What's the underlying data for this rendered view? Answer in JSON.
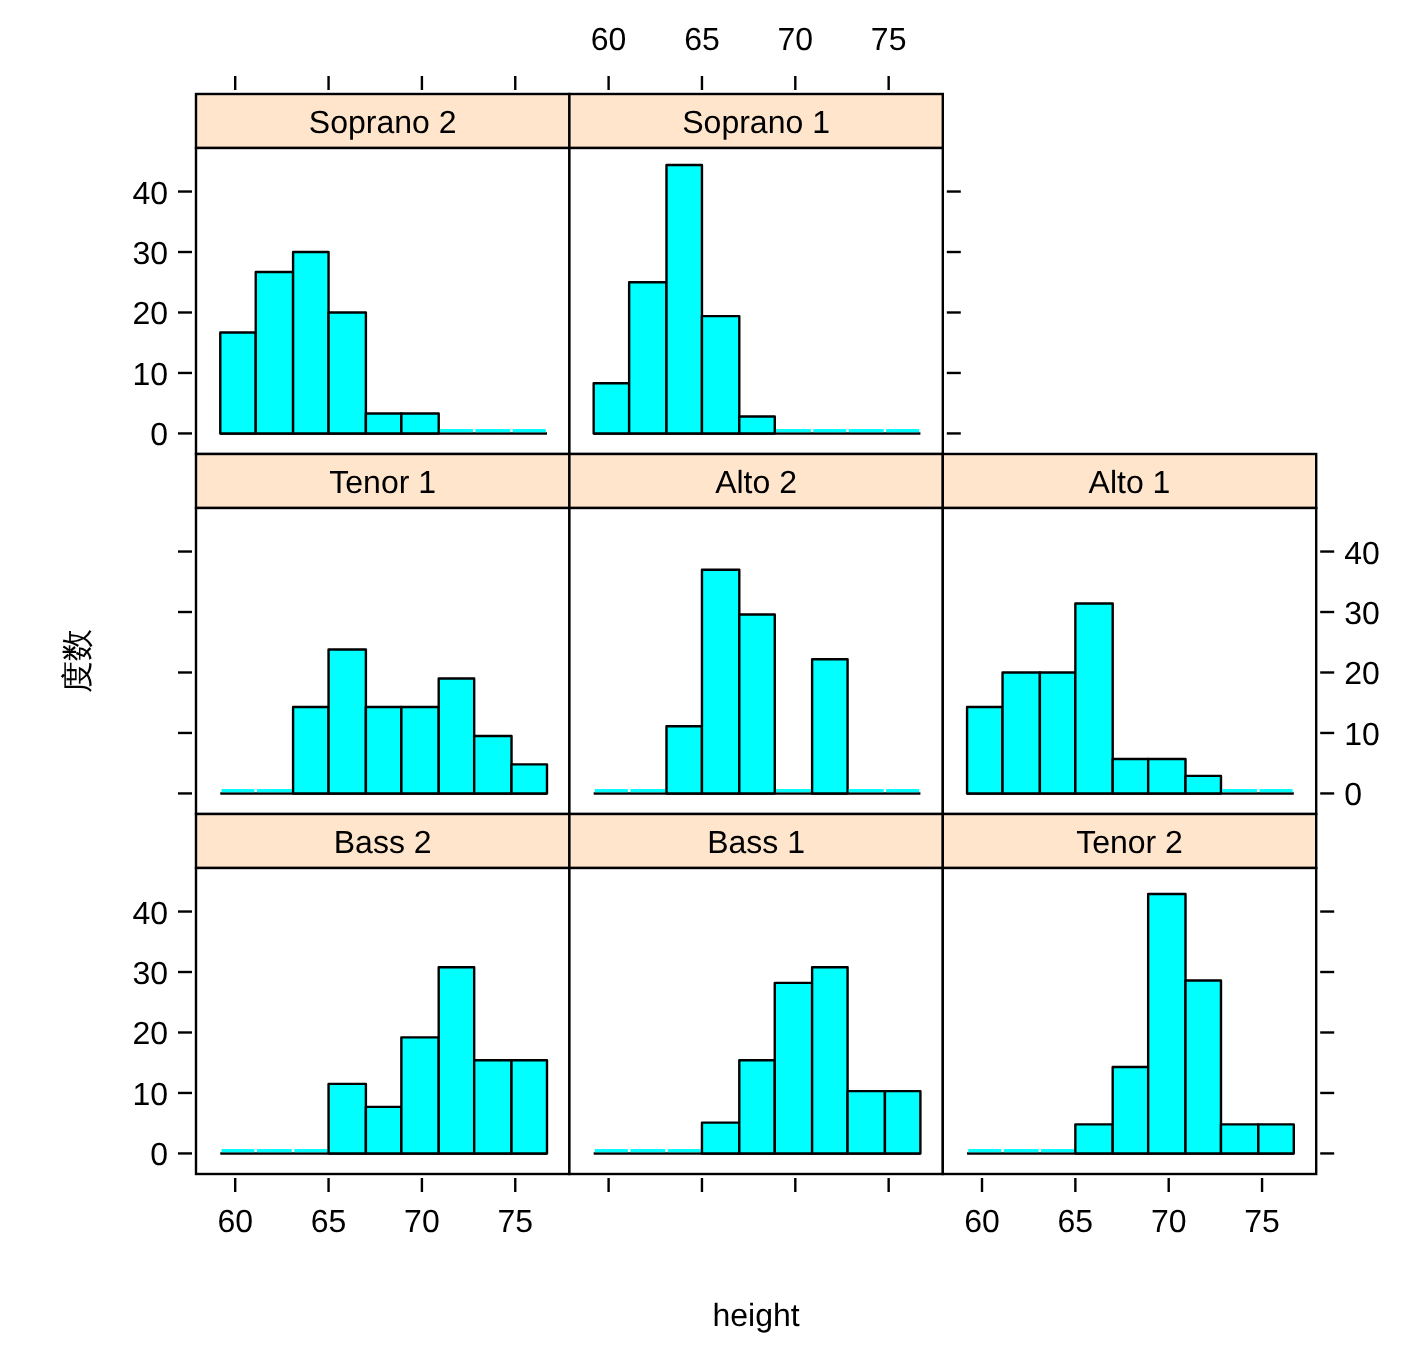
{
  "chart_data": [
    {
      "type": "histogram",
      "title": "Soprano 2",
      "bins": [
        59.2,
        61.1,
        63.1,
        65,
        67,
        68.9,
        70.9,
        72.8,
        74.8,
        76.7
      ],
      "values": [
        16.7,
        26.7,
        30,
        20,
        3.3,
        3.3,
        0,
        0,
        0
      ],
      "color": "#00ffff",
      "xlim": [
        57.9,
        77.9
      ],
      "ylim": [
        -3.4,
        47.2
      ],
      "xticks": [
        60,
        65,
        70,
        75
      ],
      "yticks": [
        0,
        10,
        20,
        30,
        40
      ],
      "tick_labels": "y"
    },
    {
      "type": "histogram",
      "title": "Soprano 1",
      "bins": [
        59.2,
        61.1,
        63.1,
        65,
        67,
        68.9,
        70.9,
        72.8,
        74.8,
        76.7
      ],
      "values": [
        8.3,
        25,
        44.4,
        19.4,
        2.8,
        0,
        0,
        0,
        0
      ],
      "color": "#00ffff",
      "xlim": [
        57.9,
        77.9
      ],
      "ylim": [
        -3.4,
        47.2
      ],
      "xticks": [
        60,
        65,
        70,
        75
      ],
      "yticks": [
        0,
        10,
        20,
        30,
        40
      ],
      "tick_labels": "x"
    },
    {
      "type": "histogram",
      "title": "Tenor 1",
      "ylabel": "度数",
      "bins": [
        59.2,
        61.1,
        63.1,
        65,
        67,
        68.9,
        70.9,
        72.8,
        74.8,
        76.7
      ],
      "values": [
        0,
        0,
        14.3,
        23.8,
        14.3,
        14.3,
        19,
        9.5,
        4.8
      ],
      "color": "#00ffff",
      "xlim": [
        57.9,
        77.9
      ],
      "ylim": [
        -3.4,
        47.2
      ],
      "xticks": [
        60,
        65,
        70,
        75
      ],
      "yticks": [
        0,
        10,
        20,
        30,
        40
      ],
      "tick_labels": false
    },
    {
      "type": "histogram",
      "title": "Alto 2",
      "bins": [
        59.2,
        61.1,
        63.1,
        65,
        67,
        68.9,
        70.9,
        72.8,
        74.8,
        76.7
      ],
      "values": [
        0,
        0,
        11.1,
        37,
        29.6,
        0,
        22.2,
        0,
        0
      ],
      "color": "#00ffff",
      "xlim": [
        57.9,
        77.9
      ],
      "ylim": [
        -3.4,
        47.2
      ],
      "xticks": [
        60,
        65,
        70,
        75
      ],
      "yticks": [
        0,
        10,
        20,
        30,
        40
      ],
      "tick_labels": false
    },
    {
      "type": "histogram",
      "title": "Alto 1",
      "bins": [
        59.2,
        61.1,
        63.1,
        65,
        67,
        68.9,
        70.9,
        72.8,
        74.8,
        76.7
      ],
      "values": [
        14.3,
        20,
        20,
        31.4,
        5.7,
        5.7,
        2.9,
        0,
        0
      ],
      "color": "#00ffff",
      "xlim": [
        57.9,
        77.9
      ],
      "ylim": [
        -3.4,
        47.2
      ],
      "xticks": [
        60,
        65,
        70,
        75
      ],
      "yticks": [
        0,
        10,
        20,
        30,
        40
      ],
      "tick_labels": "y"
    },
    {
      "type": "histogram",
      "title": "Bass 2",
      "bins": [
        59.2,
        61.1,
        63.1,
        65,
        67,
        68.9,
        70.9,
        72.8,
        74.8,
        76.7
      ],
      "values": [
        0,
        0,
        0,
        11.5,
        7.7,
        19.2,
        30.8,
        15.4,
        15.4
      ],
      "color": "#00ffff",
      "xlim": [
        57.9,
        77.9
      ],
      "ylim": [
        -3.4,
        47.2
      ],
      "xticks": [
        60,
        65,
        70,
        75
      ],
      "yticks": [
        0,
        10,
        20,
        30,
        40
      ]
    },
    {
      "type": "histogram",
      "title": "Bass 1",
      "xlabel": "height",
      "bins": [
        59.2,
        61.1,
        63.1,
        65,
        67,
        68.9,
        70.9,
        72.8,
        74.8,
        76.7
      ],
      "values": [
        0,
        0,
        0,
        5.1,
        15.4,
        28.2,
        30.8,
        10.3,
        10.3
      ],
      "color": "#00ffff",
      "xlim": [
        57.9,
        77.9
      ],
      "ylim": [
        -3.4,
        47.2
      ],
      "xticks": [
        60,
        65,
        70,
        75
      ],
      "yticks": [
        0,
        10,
        20,
        30,
        40
      ],
      "tick_labels": false
    },
    {
      "type": "histogram",
      "title": "Tenor 2",
      "bins": [
        59.2,
        61.1,
        63.1,
        65,
        67,
        68.9,
        70.9,
        72.8,
        74.8,
        76.7
      ],
      "values": [
        0,
        0,
        0,
        4.8,
        14.3,
        42.9,
        28.6,
        4.8,
        4.8
      ],
      "color": "#00ffff",
      "xlim": [
        57.9,
        77.9
      ],
      "ylim": [
        -3.4,
        47.2
      ],
      "xticks": [
        60,
        65,
        70,
        75
      ],
      "yticks": [
        0,
        10,
        20,
        30,
        40
      ],
      "tick_labels": "x"
    }
  ]
}
